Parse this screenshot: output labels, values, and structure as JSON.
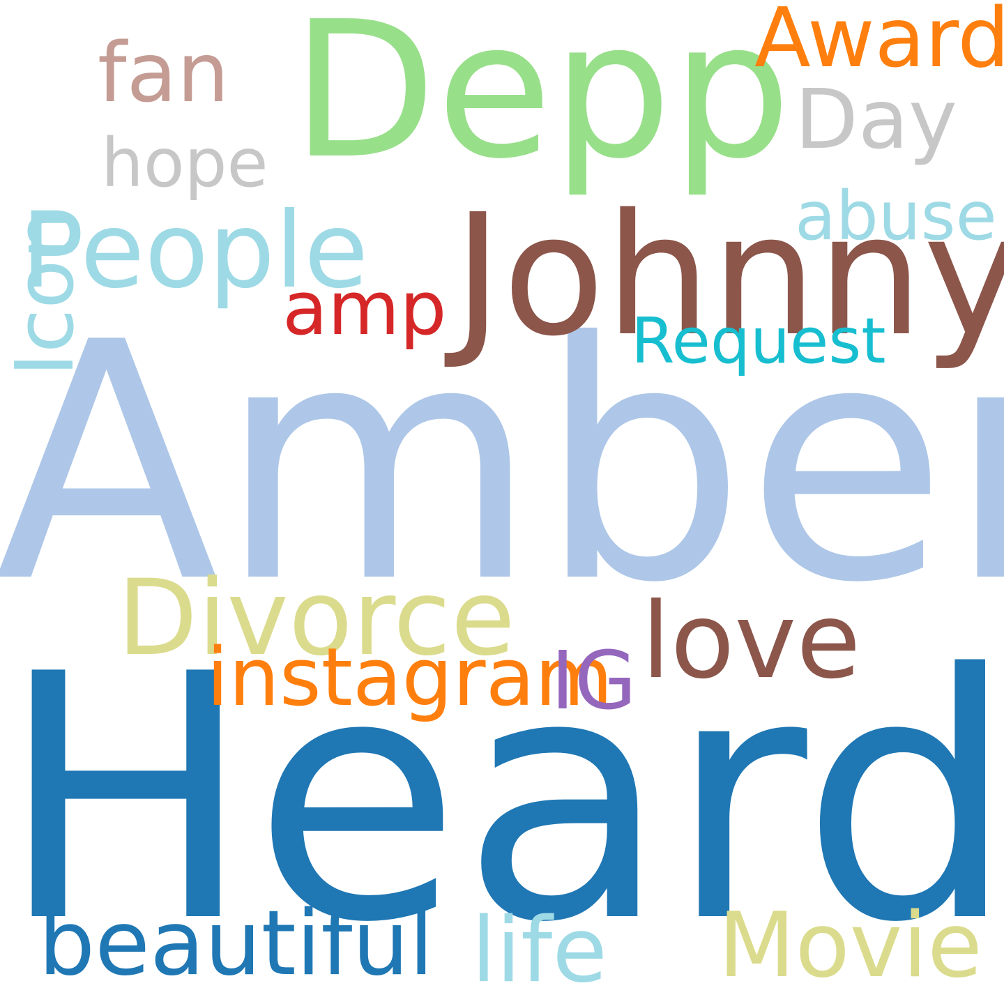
{
  "word_cloud": {
    "background": "#ffffff",
    "words": [
      {
        "id": "amber",
        "text": "Amber",
        "color": "#aec7e8",
        "orientation": "horizontal"
      },
      {
        "id": "heard",
        "text": "Heard",
        "color": "#1f77b4",
        "orientation": "horizontal"
      },
      {
        "id": "depp",
        "text": "Depp",
        "color": "#98df8a",
        "orientation": "horizontal"
      },
      {
        "id": "johnny",
        "text": "Johnny",
        "color": "#8c564b",
        "orientation": "horizontal"
      },
      {
        "id": "award",
        "text": "Award",
        "color": "#ff7f0e",
        "orientation": "horizontal"
      },
      {
        "id": "fan",
        "text": "fan",
        "color": "#c49c94",
        "orientation": "horizontal"
      },
      {
        "id": "icon",
        "text": "Icon",
        "color": "#9edae5",
        "orientation": "vertical"
      },
      {
        "id": "day",
        "text": "Day",
        "color": "#c7c7c7",
        "orientation": "horizontal"
      },
      {
        "id": "hope",
        "text": "hope",
        "color": "#c7c7c7",
        "orientation": "horizontal"
      },
      {
        "id": "people",
        "text": "People",
        "color": "#9edae5",
        "orientation": "horizontal"
      },
      {
        "id": "abuse",
        "text": "abuse",
        "color": "#9edae5",
        "orientation": "horizontal"
      },
      {
        "id": "amp",
        "text": "amp",
        "color": "#d62728",
        "orientation": "horizontal"
      },
      {
        "id": "request",
        "text": "Request",
        "color": "#17becf",
        "orientation": "horizontal"
      },
      {
        "id": "divorce",
        "text": "Divorce",
        "color": "#dbdb8d",
        "orientation": "horizontal"
      },
      {
        "id": "love",
        "text": "love",
        "color": "#8c564b",
        "orientation": "horizontal"
      },
      {
        "id": "instagram",
        "text": "instagram",
        "color": "#ff7f0e",
        "orientation": "horizontal"
      },
      {
        "id": "ig",
        "text": "IG",
        "color": "#9467bd",
        "orientation": "horizontal"
      },
      {
        "id": "beautiful",
        "text": "beautiful",
        "color": "#1f77b4",
        "orientation": "horizontal"
      },
      {
        "id": "life",
        "text": "life",
        "color": "#9edae5",
        "orientation": "horizontal"
      },
      {
        "id": "movie",
        "text": "Movie",
        "color": "#dbdb8d",
        "orientation": "horizontal"
      }
    ]
  }
}
